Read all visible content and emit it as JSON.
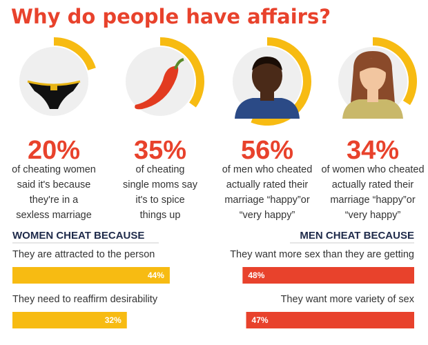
{
  "title": "Why do people have affairs?",
  "stats": [
    {
      "value": 20,
      "label": "20%",
      "lines": [
        "of cheating women",
        "said it's because",
        "they're in a",
        "sexless marriage"
      ]
    },
    {
      "value": 35,
      "label": "35%",
      "lines": [
        "of cheating",
        "single moms say",
        "it's to spice",
        "things up"
      ]
    },
    {
      "value": 56,
      "label": "56%",
      "lines": [
        "of men who cheated",
        "actually rated their",
        "marriage “happy”or",
        "“very happy”"
      ]
    },
    {
      "value": 34,
      "label": "34%",
      "lines": [
        "of women who cheated",
        "actually rated their",
        "marriage “happy”or",
        "“very happy”"
      ]
    }
  ],
  "women": {
    "heading": "WOMEN CHEAT BECAUSE",
    "color": "#f7bb12",
    "reasons": [
      {
        "text": "They are attracted to the person",
        "value": 44,
        "label": "44%"
      },
      {
        "text": "They need to reaffirm desirability",
        "value": 32,
        "label": "32%"
      }
    ]
  },
  "men": {
    "heading": "MEN CHEAT BECAUSE",
    "color": "#e8422c",
    "reasons": [
      {
        "text": "They want more sex than they are getting",
        "value": 48,
        "label": "48%"
      },
      {
        "text": "They want more variety of sex",
        "value": 47,
        "label": "47%"
      }
    ]
  },
  "ring_color": "#f7bb12"
}
